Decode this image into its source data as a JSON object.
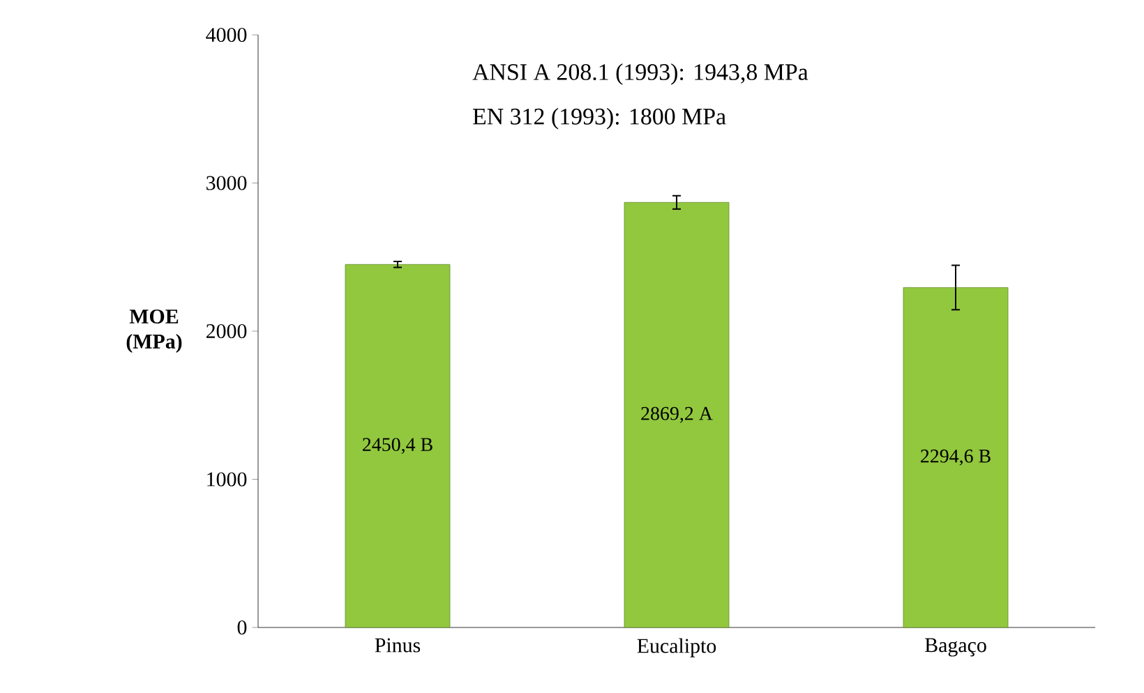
{
  "chart_data": {
    "type": "bar",
    "ylabel": "MOE (MPa)",
    "categories": [
      "Pinus",
      "Eucalipto",
      "Bagaço"
    ],
    "values": [
      2450.4,
      2869.2,
      2294.6
    ],
    "errors": [
      20,
      45,
      150
    ],
    "value_labels": [
      "2450,4 B",
      "2869,2 A",
      "2294,6 B"
    ],
    "color": "#92c83e",
    "ylim": [
      0,
      4000
    ],
    "yticks": [
      0,
      1000,
      2000,
      3000,
      4000
    ],
    "annotations": [
      "ANSI A 208.1 (1993): 1943,8 MPa",
      "EN 312 (1993): 1800 MPa"
    ]
  }
}
